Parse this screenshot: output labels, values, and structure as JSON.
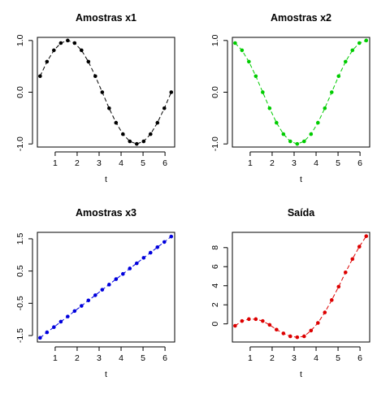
{
  "chart_data": [
    {
      "type": "line",
      "title": "Amostras x1",
      "xlabel": "t",
      "ylabel": "",
      "xlim": [
        0.19,
        6.44
      ],
      "ylim": [
        -1.06,
        1.06
      ],
      "xticks": [
        1,
        2,
        3,
        4,
        5,
        6
      ],
      "yticks": [
        -1.0,
        0.0,
        1.0
      ],
      "ytick_labels": [
        "-1.0",
        "0.0",
        "1.0"
      ],
      "color": "#000000",
      "x": [
        0.314,
        0.628,
        0.942,
        1.257,
        1.571,
        1.885,
        2.199,
        2.513,
        2.827,
        3.142,
        3.456,
        3.77,
        4.084,
        4.398,
        4.712,
        5.027,
        5.341,
        5.655,
        5.969,
        6.283
      ],
      "y": [
        0.31,
        0.59,
        0.81,
        0.95,
        1.0,
        0.95,
        0.81,
        0.59,
        0.31,
        0.0,
        -0.31,
        -0.59,
        -0.81,
        -0.95,
        -1.0,
        -0.95,
        -0.81,
        -0.59,
        -0.31,
        0.0
      ]
    },
    {
      "type": "line",
      "title": "Amostras x2",
      "xlabel": "t",
      "ylabel": "",
      "xlim": [
        0.19,
        6.44
      ],
      "ylim": [
        -1.06,
        1.06
      ],
      "xticks": [
        1,
        2,
        3,
        4,
        5,
        6
      ],
      "yticks": [
        -1.0,
        0.0,
        1.0
      ],
      "ytick_labels": [
        "-1.0",
        "0.0",
        "1.0"
      ],
      "color": "#00cc00",
      "x": [
        0.314,
        0.628,
        0.942,
        1.257,
        1.571,
        1.885,
        2.199,
        2.513,
        2.827,
        3.142,
        3.456,
        3.77,
        4.084,
        4.398,
        4.712,
        5.027,
        5.341,
        5.655,
        5.969,
        6.283
      ],
      "y": [
        0.95,
        0.81,
        0.59,
        0.31,
        0.0,
        -0.31,
        -0.59,
        -0.81,
        -0.95,
        -1.0,
        -0.95,
        -0.81,
        -0.59,
        -0.31,
        0.0,
        0.31,
        0.59,
        0.81,
        0.95,
        1.0
      ]
    },
    {
      "type": "line",
      "title": "Amostras x3",
      "xlabel": "t",
      "ylabel": "",
      "xlim": [
        0.19,
        6.44
      ],
      "ylim": [
        -1.7,
        1.7
      ],
      "xticks": [
        1,
        2,
        3,
        4,
        5,
        6
      ],
      "yticks": [
        -1.5,
        -0.5,
        0.5,
        1.5
      ],
      "ytick_labels": [
        "-1.5",
        "-0.5",
        "0.5",
        "1.5"
      ],
      "color": "#0000dd",
      "x": [
        0.314,
        0.628,
        0.942,
        1.257,
        1.571,
        1.885,
        2.199,
        2.513,
        2.827,
        3.142,
        3.456,
        3.77,
        4.084,
        4.398,
        4.712,
        5.027,
        5.341,
        5.655,
        5.969,
        6.283
      ],
      "y": [
        -1.57,
        -1.4,
        -1.24,
        -1.07,
        -0.91,
        -0.74,
        -0.58,
        -0.41,
        -0.25,
        -0.08,
        0.08,
        0.25,
        0.41,
        0.58,
        0.74,
        0.91,
        1.07,
        1.24,
        1.4,
        1.57
      ]
    },
    {
      "type": "line",
      "title": "Saída",
      "xlabel": "t",
      "ylabel": "",
      "xlim": [
        0.19,
        6.44
      ],
      "ylim": [
        -1.9,
        9.6
      ],
      "xticks": [
        1,
        2,
        3,
        4,
        5,
        6
      ],
      "yticks": [
        0,
        2,
        4,
        6,
        8
      ],
      "ytick_labels": [
        "0",
        "2",
        "4",
        "6",
        "8"
      ],
      "color": "#dd0000",
      "x": [
        0.314,
        0.628,
        0.942,
        1.257,
        1.571,
        1.885,
        2.199,
        2.513,
        2.827,
        3.142,
        3.456,
        3.77,
        4.084,
        4.398,
        4.712,
        5.027,
        5.341,
        5.655,
        5.969,
        6.283
      ],
      "y": [
        -0.2,
        0.3,
        0.5,
        0.5,
        0.3,
        -0.1,
        -0.6,
        -1.0,
        -1.3,
        -1.4,
        -1.3,
        -0.7,
        0.1,
        1.2,
        2.5,
        3.9,
        5.4,
        6.8,
        8.1,
        9.2
      ]
    }
  ]
}
